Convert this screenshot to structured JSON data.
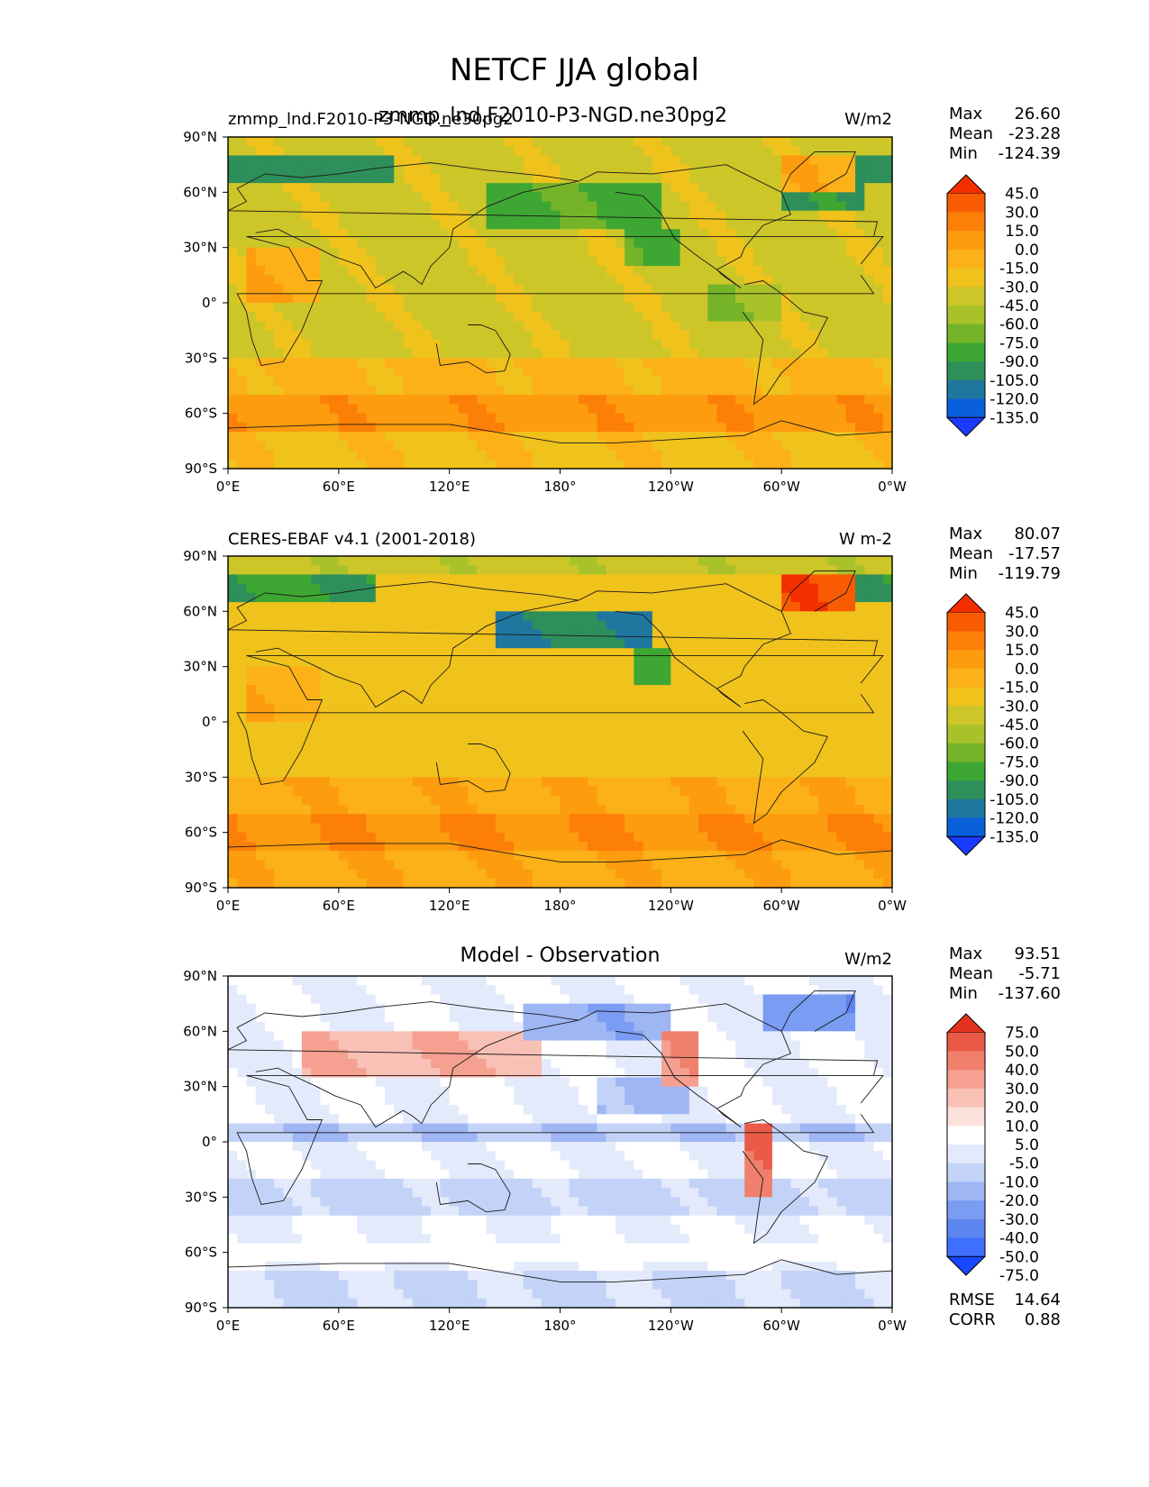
{
  "figure": {
    "title": "NETCF JJA global",
    "overlap_title": "zmmp_lnd.F2010-P3-NGD.ne30pg2"
  },
  "colors": {
    "field_scale": [
      "#1a3bff",
      "#0a5fdb",
      "#1f77a0",
      "#2e8f5a",
      "#3ea632",
      "#75b428",
      "#a9c22a",
      "#cdc628",
      "#f0c21c",
      "#fbb117",
      "#fd9c0f",
      "#fc7f07",
      "#f95b02",
      "#f52e00"
    ],
    "diff_scale": [
      "#1946ff",
      "#3f6fff",
      "#5d85f0",
      "#7a9cf2",
      "#9fb6f5",
      "#c3d2f7",
      "#e3eafb",
      "#ffffff",
      "#fbe1dc",
      "#f9c1b6",
      "#f5a090",
      "#f0806c",
      "#ea5a47",
      "#e4321f"
    ],
    "coast": "#1a1a1a"
  },
  "chart_data": [
    {
      "type": "heatmap",
      "name": "model",
      "title_left": "zmmp_lnd.F2010-P3-NGD.ne30pg2",
      "title_right": "W/m2",
      "stats": [
        {
          "label": "Max",
          "value": "26.60"
        },
        {
          "label": "Mean",
          "value": "-23.28"
        },
        {
          "label": "Min",
          "value": "-124.39"
        }
      ],
      "colorbar_levels": [
        "45.0",
        "30.0",
        "15.0",
        "0.0",
        "-15.0",
        "-30.0",
        "-45.0",
        "-60.0",
        "-75.0",
        "-90.0",
        "-105.0",
        "-120.0",
        "-135.0"
      ],
      "xticks": [
        "0°E",
        "60°E",
        "120°E",
        "180°",
        "120°W",
        "60°W",
        "0°W"
      ],
      "yticks": [
        "90°N",
        "60°N",
        "30°N",
        "0°",
        "30°S",
        "60°S",
        "90°S"
      ],
      "xlim": [
        0,
        360
      ],
      "ylim": [
        -90,
        90
      ]
    },
    {
      "type": "heatmap",
      "name": "observation",
      "title_left": "CERES-EBAF v4.1 (2001-2018)",
      "title_right": "W m-2",
      "stats": [
        {
          "label": "Max",
          "value": "80.07"
        },
        {
          "label": "Mean",
          "value": "-17.57"
        },
        {
          "label": "Min",
          "value": "-119.79"
        }
      ],
      "colorbar_levels": [
        "45.0",
        "30.0",
        "15.0",
        "0.0",
        "-15.0",
        "-30.0",
        "-45.0",
        "-60.0",
        "-75.0",
        "-90.0",
        "-105.0",
        "-120.0",
        "-135.0"
      ],
      "xticks": [
        "0°E",
        "60°E",
        "120°E",
        "180°",
        "120°W",
        "60°W",
        "0°W"
      ],
      "yticks": [
        "90°N",
        "60°N",
        "30°N",
        "0°",
        "30°S",
        "60°S",
        "90°S"
      ],
      "xlim": [
        0,
        360
      ],
      "ylim": [
        -90,
        90
      ]
    },
    {
      "type": "heatmap",
      "name": "difference",
      "title_center": "Model - Observation",
      "title_right": "W/m2",
      "stats": [
        {
          "label": "Max",
          "value": "93.51"
        },
        {
          "label": "Mean",
          "value": "-5.71"
        },
        {
          "label": "Min",
          "value": "-137.60"
        }
      ],
      "extra_stats": [
        {
          "label": "RMSE",
          "value": "14.64"
        },
        {
          "label": "CORR",
          "value": "0.88"
        }
      ],
      "colorbar_levels": [
        "75.0",
        "50.0",
        "40.0",
        "30.0",
        "20.0",
        "10.0",
        "5.0",
        "-5.0",
        "-10.0",
        "-20.0",
        "-30.0",
        "-40.0",
        "-50.0",
        "-75.0"
      ],
      "xticks": [
        "0°E",
        "60°E",
        "120°E",
        "180°",
        "120°W",
        "60°W",
        "0°W"
      ],
      "yticks": [
        "90°N",
        "60°N",
        "30°N",
        "0°",
        "30°S",
        "60°S",
        "90°S"
      ],
      "xlim": [
        0,
        360
      ],
      "ylim": [
        -90,
        90
      ]
    }
  ]
}
